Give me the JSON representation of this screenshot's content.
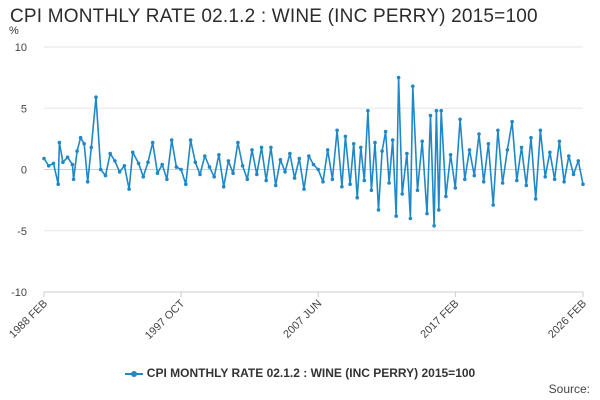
{
  "title": "CPI MONTHLY RATE 02.1.2 : WINE (INC PERRY) 2015=100",
  "unit": "%",
  "source_label": "Source:",
  "chart_data": {
    "type": "line",
    "title": "CPI MONTHLY RATE 02.1.2 : WINE (INC PERRY) 2015=100",
    "xlabel": "",
    "ylabel": "%",
    "ylim": [
      -10,
      10
    ],
    "yticks": [
      10,
      5,
      0,
      -5,
      -10
    ],
    "xticks": [
      "1988 FEB",
      "1997 OCT",
      "2007 JUN",
      "2017 FEB",
      "2026 FEB"
    ],
    "x_range": [
      "1988 FEB",
      "2026 FEB"
    ],
    "grid": true,
    "legend_position": "bottom",
    "series": [
      {
        "name": "CPI MONTHLY RATE 02.1.2 : WINE (INC PERRY) 2015=100",
        "color": "#1f88c8",
        "points": [
          [
            "1988 FEB",
            0.9
          ],
          [
            "1988 JUN",
            0.3
          ],
          [
            "1988 OCT",
            0.5
          ],
          [
            "1989 FEB",
            -1.2
          ],
          [
            "1989 MAR",
            2.2
          ],
          [
            "1989 JUN",
            0.6
          ],
          [
            "1989 OCT",
            1.0
          ],
          [
            "1990 FEB",
            0.4
          ],
          [
            "1990 MAR",
            -0.8
          ],
          [
            "1990 JUN",
            1.5
          ],
          [
            "1990 SEP",
            2.6
          ],
          [
            "1990 DEC",
            2.1
          ],
          [
            "1991 MAR",
            -1.0
          ],
          [
            "1991 JUN",
            1.8
          ],
          [
            "1991 OCT",
            5.9
          ],
          [
            "1992 FEB",
            0.0
          ],
          [
            "1992 JUN",
            -0.5
          ],
          [
            "1992 OCT",
            1.3
          ],
          [
            "1993 FEB",
            0.7
          ],
          [
            "1993 JUN",
            -0.2
          ],
          [
            "1993 OCT",
            0.3
          ],
          [
            "1994 FEB",
            -1.6
          ],
          [
            "1994 MAY",
            1.4
          ],
          [
            "1994 OCT",
            0.5
          ],
          [
            "1995 FEB",
            -0.6
          ],
          [
            "1995 JUN",
            0.6
          ],
          [
            "1995 OCT",
            2.2
          ],
          [
            "1996 FEB",
            -0.3
          ],
          [
            "1996 JUN",
            0.4
          ],
          [
            "1996 OCT",
            -0.8
          ],
          [
            "1997 FEB",
            2.4
          ],
          [
            "1997 JUN",
            0.2
          ],
          [
            "1997 OCT",
            0.0
          ],
          [
            "1998 FEB",
            -1.2
          ],
          [
            "1998 JUN",
            2.4
          ],
          [
            "1998 OCT",
            0.6
          ],
          [
            "1999 FEB",
            -0.4
          ],
          [
            "1999 JUN",
            1.1
          ],
          [
            "1999 OCT",
            0.2
          ],
          [
            "2000 FEB",
            -0.6
          ],
          [
            "2000 JUN",
            1.2
          ],
          [
            "2000 OCT",
            -1.4
          ],
          [
            "2001 FEB",
            0.7
          ],
          [
            "2001 JUN",
            -0.3
          ],
          [
            "2001 OCT",
            2.2
          ],
          [
            "2002 FEB",
            0.3
          ],
          [
            "2002 JUN",
            -0.8
          ],
          [
            "2002 OCT",
            1.6
          ],
          [
            "2003 FEB",
            -0.4
          ],
          [
            "2003 JUN",
            1.8
          ],
          [
            "2003 OCT",
            -0.9
          ],
          [
            "2004 FEB",
            1.8
          ],
          [
            "2004 JUN",
            -1.3
          ],
          [
            "2004 OCT",
            0.8
          ],
          [
            "2005 FEB",
            -0.2
          ],
          [
            "2005 JUN",
            1.3
          ],
          [
            "2005 OCT",
            -0.7
          ],
          [
            "2006 FEB",
            0.9
          ],
          [
            "2006 JUN",
            -1.6
          ],
          [
            "2006 OCT",
            1.1
          ],
          [
            "2007 FEB",
            0.4
          ],
          [
            "2007 JUN",
            0.0
          ],
          [
            "2007 OCT",
            -1.0
          ],
          [
            "2008 FEB",
            1.6
          ],
          [
            "2008 JUN",
            -0.8
          ],
          [
            "2008 OCT",
            3.2
          ],
          [
            "2009 FEB",
            -1.4
          ],
          [
            "2009 MAY",
            2.7
          ],
          [
            "2009 SEP",
            -1.2
          ],
          [
            "2009 DEC",
            2.1
          ],
          [
            "2010 MAR",
            -2.3
          ],
          [
            "2010 JUN",
            1.8
          ],
          [
            "2010 SEP",
            -0.9
          ],
          [
            "2010 DEC",
            4.8
          ],
          [
            "2011 MAR",
            -1.7
          ],
          [
            "2011 JUN",
            2.2
          ],
          [
            "2011 SEP",
            -3.3
          ],
          [
            "2011 DEC",
            1.5
          ],
          [
            "2012 MAR",
            3.1
          ],
          [
            "2012 JUN",
            -1.1
          ],
          [
            "2012 SEP",
            2.4
          ],
          [
            "2012 DEC",
            -3.8
          ],
          [
            "2013 FEB",
            7.5
          ],
          [
            "2013 MAY",
            -2.0
          ],
          [
            "2013 SEP",
            1.3
          ],
          [
            "2013 DEC",
            -4.0
          ],
          [
            "2014 FEB",
            6.8
          ],
          [
            "2014 JUN",
            -1.7
          ],
          [
            "2014 OCT",
            2.3
          ],
          [
            "2015 FEB",
            -3.6
          ],
          [
            "2015 MAY",
            4.4
          ],
          [
            "2015 AUG",
            -4.6
          ],
          [
            "2015 OCT",
            4.8
          ],
          [
            "2015 DEC",
            -3.3
          ],
          [
            "2016 FEB",
            4.8
          ],
          [
            "2016 JUN",
            -2.2
          ],
          [
            "2016 OCT",
            1.2
          ],
          [
            "2017 FEB",
            -1.5
          ],
          [
            "2017 JUN",
            4.1
          ],
          [
            "2017 OCT",
            -0.8
          ],
          [
            "2018 FEB",
            1.6
          ],
          [
            "2018 JUN",
            -0.5
          ],
          [
            "2018 OCT",
            2.9
          ],
          [
            "2019 FEB",
            -1.0
          ],
          [
            "2019 JUN",
            2.1
          ],
          [
            "2019 OCT",
            -2.9
          ],
          [
            "2020 FEB",
            3.2
          ],
          [
            "2020 JUN",
            -1.1
          ],
          [
            "2020 OCT",
            1.6
          ],
          [
            "2021 FEB",
            3.9
          ],
          [
            "2021 JUN",
            -0.9
          ],
          [
            "2021 OCT",
            1.8
          ],
          [
            "2022 FEB",
            -1.3
          ],
          [
            "2022 JUN",
            2.6
          ],
          [
            "2022 OCT",
            -2.4
          ],
          [
            "2023 FEB",
            3.2
          ],
          [
            "2023 JUN",
            -0.6
          ],
          [
            "2023 OCT",
            1.4
          ],
          [
            "2024 FEB",
            -0.8
          ],
          [
            "2024 JUN",
            2.3
          ],
          [
            "2024 OCT",
            -1.0
          ],
          [
            "2025 FEB",
            1.1
          ],
          [
            "2025 JUN",
            -0.4
          ],
          [
            "2025 OCT",
            0.7
          ],
          [
            "2026 FEB",
            -1.2
          ]
        ]
      }
    ]
  }
}
